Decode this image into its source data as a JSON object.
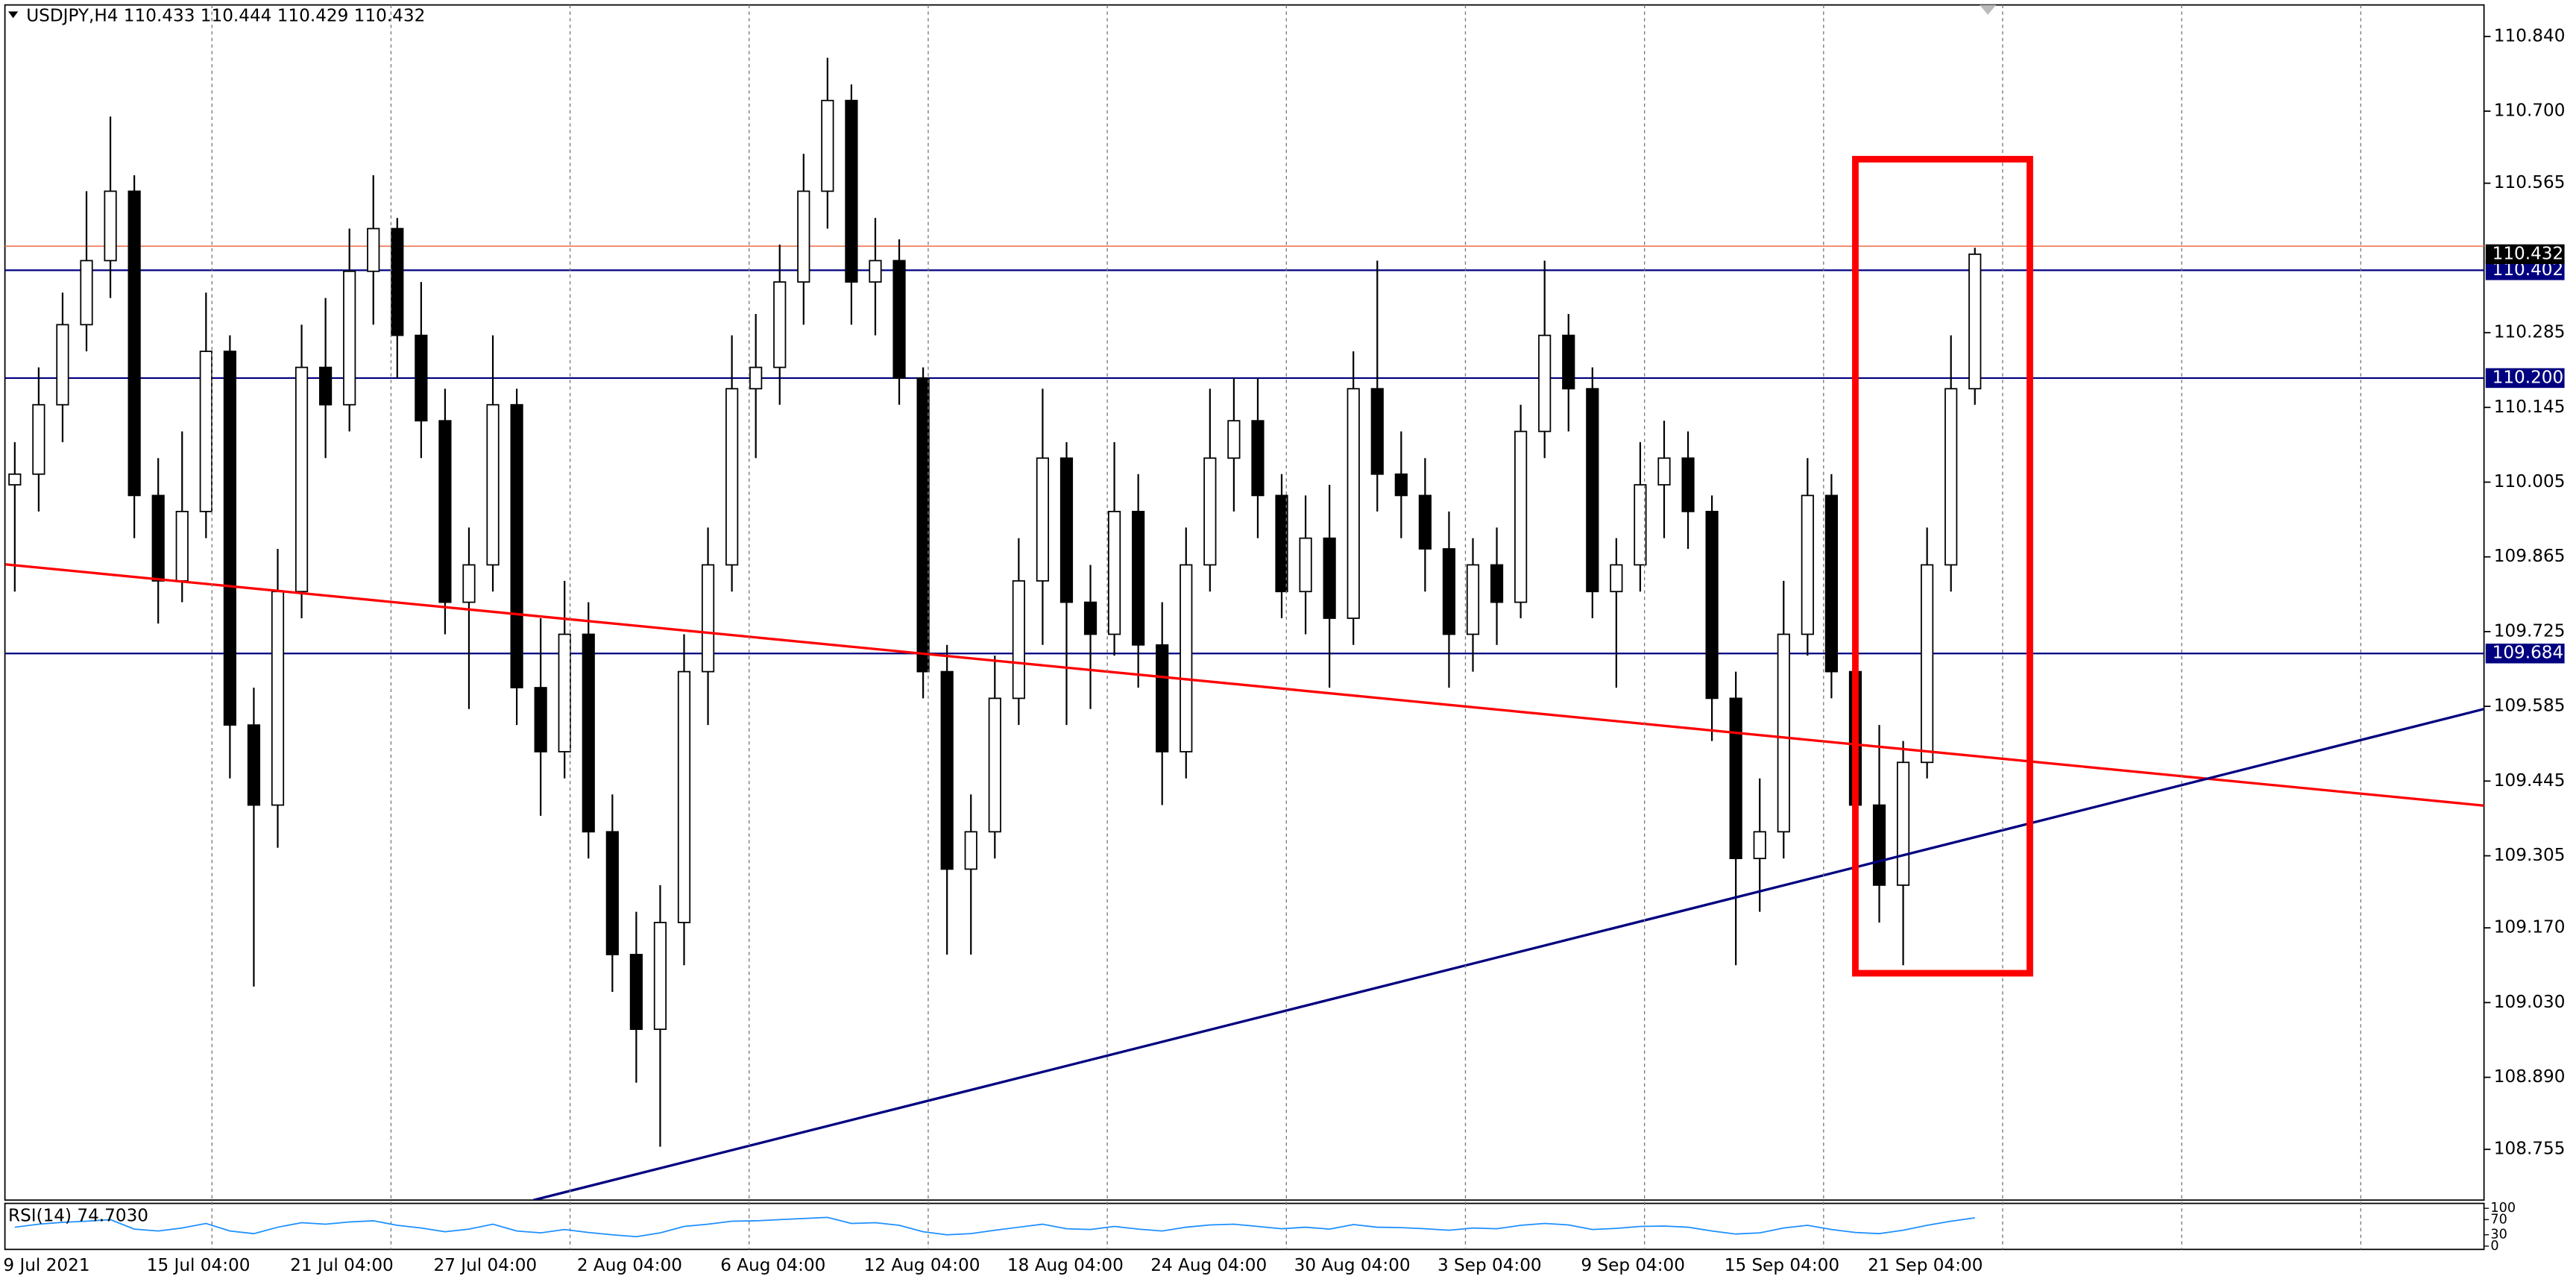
{
  "chart_data": {
    "type": "candlestick",
    "title": "USDJPY,H4  110.433 110.444 110.429 110.432",
    "categories": [
      "9 Jul 2021",
      null,
      null,
      null,
      null,
      null,
      "15 Jul 04:00",
      null,
      null,
      null,
      null,
      null,
      "21 Jul 04:00",
      null,
      null,
      null,
      null,
      null,
      "27 Jul 04:00",
      null,
      null,
      null,
      null,
      null,
      "2 Aug 04:00",
      null,
      null,
      null,
      null,
      null,
      "6 Aug 04:00",
      null,
      null,
      null,
      null,
      null,
      "12 Aug 04:00",
      null,
      null,
      null,
      null,
      null,
      "18 Aug 04:00",
      null,
      null,
      null,
      null,
      null,
      "24 Aug 04:00",
      null,
      null,
      null,
      null,
      null,
      "30 Aug 04:00",
      null,
      null,
      null,
      null,
      null,
      "3 Sep 04:00",
      null,
      null,
      null,
      null,
      null,
      "9 Sep 04:00",
      null,
      null,
      null,
      null,
      null,
      "15 Sep 04:00",
      null,
      null,
      null,
      null,
      null,
      "21 Sep 04:00",
      null,
      null,
      null,
      null
    ],
    "open": [
      110.0,
      110.02,
      110.15,
      110.3,
      110.42,
      110.55,
      109.98,
      109.82,
      109.95,
      110.25,
      109.55,
      109.4,
      109.8,
      110.22,
      110.15,
      110.4,
      110.48,
      110.28,
      110.12,
      109.78,
      109.85,
      110.15,
      109.62,
      109.5,
      109.72,
      109.35,
      109.12,
      108.98,
      109.18,
      109.65,
      109.85,
      110.18,
      110.22,
      110.38,
      110.55,
      110.72,
      110.38,
      110.42,
      110.2,
      109.65,
      109.28,
      109.35,
      109.6,
      109.82,
      110.05,
      109.78,
      109.72,
      109.95,
      109.7,
      109.5,
      109.85,
      110.05,
      110.12,
      109.98,
      109.8,
      109.9,
      109.75,
      110.18,
      110.02,
      109.98,
      109.88,
      109.72,
      109.85,
      109.78,
      110.1,
      110.28,
      110.18,
      109.8,
      109.85,
      110.0,
      110.05,
      109.95,
      109.6,
      109.3,
      109.35,
      109.72,
      109.98,
      109.65,
      109.4,
      109.25,
      109.48,
      109.85,
      110.18
    ],
    "high": [
      110.08,
      110.22,
      110.36,
      110.55,
      110.69,
      110.58,
      110.05,
      110.1,
      110.36,
      110.28,
      109.62,
      109.88,
      110.3,
      110.35,
      110.48,
      110.58,
      110.5,
      110.38,
      110.18,
      109.92,
      110.28,
      110.18,
      109.75,
      109.82,
      109.78,
      109.42,
      109.2,
      109.25,
      109.72,
      109.92,
      110.28,
      110.32,
      110.45,
      110.62,
      110.8,
      110.75,
      110.5,
      110.46,
      110.22,
      109.7,
      109.42,
      109.68,
      109.9,
      110.18,
      110.08,
      109.85,
      110.08,
      110.02,
      109.78,
      109.92,
      110.18,
      110.2,
      110.2,
      110.02,
      109.98,
      110.0,
      110.25,
      110.42,
      110.1,
      110.05,
      109.95,
      109.9,
      109.92,
      110.15,
      110.42,
      110.32,
      110.22,
      109.9,
      110.08,
      110.12,
      110.1,
      109.98,
      109.65,
      109.45,
      109.82,
      110.05,
      110.02,
      109.7,
      109.55,
      109.52,
      109.92,
      110.28,
      110.444
    ],
    "low": [
      109.8,
      109.95,
      110.08,
      110.25,
      110.35,
      109.9,
      109.74,
      109.78,
      109.9,
      109.45,
      109.06,
      109.32,
      109.75,
      110.05,
      110.1,
      110.3,
      110.2,
      110.05,
      109.72,
      109.58,
      109.8,
      109.55,
      109.38,
      109.45,
      109.3,
      109.05,
      108.88,
      108.76,
      109.1,
      109.55,
      109.8,
      110.05,
      110.15,
      110.3,
      110.48,
      110.3,
      110.28,
      110.15,
      109.6,
      109.12,
      109.12,
      109.3,
      109.55,
      109.7,
      109.55,
      109.58,
      109.68,
      109.62,
      109.4,
      109.45,
      109.8,
      109.95,
      109.9,
      109.75,
      109.72,
      109.62,
      109.7,
      109.95,
      109.9,
      109.8,
      109.62,
      109.65,
      109.7,
      109.75,
      110.05,
      110.1,
      109.75,
      109.62,
      109.8,
      109.9,
      109.88,
      109.52,
      109.1,
      109.2,
      109.3,
      109.68,
      109.6,
      109.28,
      109.18,
      109.1,
      109.45,
      109.8,
      110.15
    ],
    "close": [
      110.02,
      110.15,
      110.3,
      110.42,
      110.55,
      109.98,
      109.82,
      109.95,
      110.25,
      109.55,
      109.4,
      109.8,
      110.22,
      110.15,
      110.4,
      110.48,
      110.28,
      110.12,
      109.78,
      109.85,
      110.15,
      109.62,
      109.5,
      109.72,
      109.35,
      109.12,
      108.98,
      109.18,
      109.65,
      109.85,
      110.18,
      110.22,
      110.38,
      110.55,
      110.72,
      110.38,
      110.42,
      110.2,
      109.65,
      109.28,
      109.35,
      109.6,
      109.82,
      110.05,
      109.78,
      109.72,
      109.95,
      109.7,
      109.5,
      109.85,
      110.05,
      110.12,
      109.98,
      109.8,
      109.9,
      109.75,
      110.18,
      110.02,
      109.98,
      109.88,
      109.72,
      109.85,
      109.78,
      110.1,
      110.28,
      110.18,
      109.8,
      109.85,
      110.0,
      110.05,
      109.95,
      109.6,
      109.3,
      109.35,
      109.72,
      109.98,
      109.65,
      109.4,
      109.25,
      109.48,
      109.85,
      110.18,
      110.432
    ],
    "up_color": "#ffffff",
    "down_color": "#000000",
    "wick_color": "#000000",
    "ylim": [
      108.66,
      110.899
    ],
    "yticks": [
      {
        "value": 110.84,
        "label": "110.840"
      },
      {
        "value": 110.7,
        "label": "110.700"
      },
      {
        "value": 110.565,
        "label": "110.565"
      },
      {
        "value": 110.285,
        "label": "110.285"
      },
      {
        "value": 110.145,
        "label": "110.145"
      },
      {
        "value": 110.005,
        "label": "110.005"
      },
      {
        "value": 109.865,
        "label": "109.865"
      },
      {
        "value": 109.725,
        "label": "109.725"
      },
      {
        "value": 109.585,
        "label": "109.585"
      },
      {
        "value": 109.445,
        "label": "109.445"
      },
      {
        "value": 109.305,
        "label": "109.305"
      },
      {
        "value": 109.17,
        "label": "109.170"
      },
      {
        "value": 109.03,
        "label": "109.030"
      },
      {
        "value": 108.89,
        "label": "108.890"
      },
      {
        "value": 108.755,
        "label": "108.755"
      }
    ],
    "levels": [
      {
        "value": 110.402,
        "label": "110.402"
      },
      {
        "value": 110.2,
        "label": "110.200"
      },
      {
        "value": 109.684,
        "label": "109.684"
      }
    ],
    "level_color": "#000080",
    "price_line": {
      "value": 110.432,
      "label": "110.432"
    },
    "ask_line": {
      "value": 110.447,
      "color": "#f08060"
    },
    "trendlines": [
      {
        "color": "#ff0000",
        "points": [
          [
            -0.4,
            109.851
          ],
          [
            103.3,
            109.399
          ]
        ]
      },
      {
        "color": "#000080",
        "points": [
          [
            21.7,
            108.66
          ],
          [
            103.3,
            109.58
          ]
        ]
      }
    ],
    "highlight_box": {
      "color": "#ff0000",
      "x": [
        77,
        84.3
      ],
      "y": [
        109.085,
        110.61
      ]
    },
    "rsi": {
      "label": "RSI(14) 74.7030",
      "color": "#1e90ff",
      "ylim": [
        0,
        100
      ],
      "yticks": [
        0,
        30,
        70,
        100
      ],
      "values": [
        50,
        58,
        63,
        66,
        70,
        45,
        40,
        48,
        60,
        40,
        33,
        50,
        62,
        58,
        64,
        67,
        55,
        48,
        38,
        45,
        58,
        40,
        35,
        44,
        36,
        30,
        25,
        35,
        52,
        58,
        66,
        67,
        70,
        73,
        76,
        60,
        62,
        55,
        38,
        30,
        33,
        42,
        50,
        58,
        46,
        44,
        52,
        45,
        40,
        50,
        56,
        58,
        52,
        46,
        50,
        45,
        57,
        50,
        49,
        46,
        42,
        48,
        46,
        55,
        60,
        56,
        44,
        47,
        52,
        53,
        50,
        40,
        32,
        35,
        48,
        55,
        44,
        36,
        33,
        42,
        55,
        66,
        74.703
      ]
    }
  }
}
